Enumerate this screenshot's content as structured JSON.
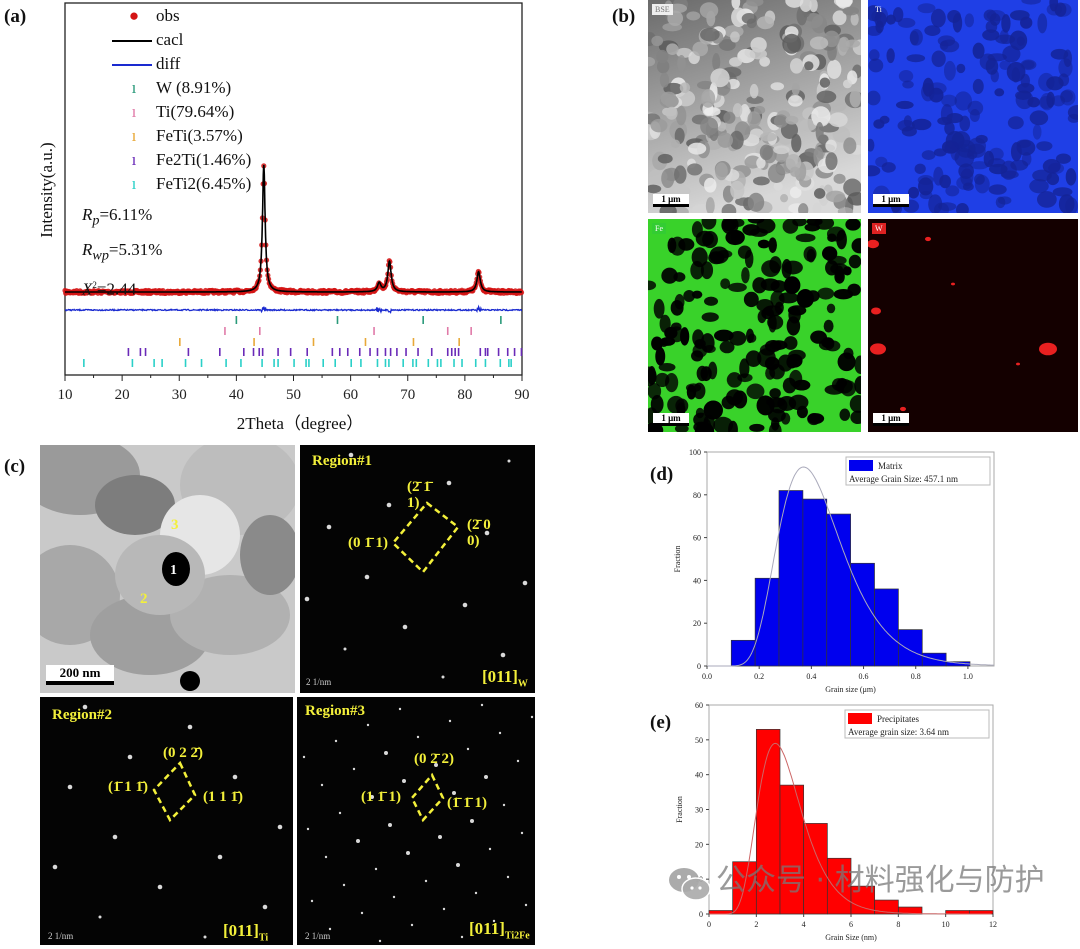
{
  "panels": {
    "a": "(a)",
    "b": "(b)",
    "c": "(c)",
    "d": "(d)",
    "e": "(e)"
  },
  "colors": {
    "obs": "#d41414",
    "calc": "#000000",
    "diff": "#1a2ad0",
    "W": "#2a9a7a",
    "Ti": "#e07aa8",
    "FeTi": "#e8a838",
    "Fe2Ti": "#6a2ab8",
    "FeTi2": "#2ad0c8",
    "matrix": "#0000ee",
    "precip": "#ff0000"
  },
  "chart_data": [
    {
      "type": "line",
      "title": "",
      "xlabel": "2Theta（degree）",
      "ylabel": "Intensity(a.u.)",
      "xlim": [
        10,
        90
      ],
      "xticks": [
        "10",
        "20",
        "30",
        "40",
        "50",
        "60",
        "70",
        "80",
        "90"
      ],
      "legend": {
        "obs": "obs",
        "calc": "cacl",
        "diff": "diff",
        "phases": [
          "W (8.91%)",
          "Ti(79.64%)",
          "FeTi(3.57%)",
          "Fe2Ti(1.46%)",
          "FeTi2(6.45%)"
        ]
      },
      "stats": {
        "rp_sym": "R",
        "rp_sub": "p",
        "rp_val": "=6.11%",
        "rwp_sym": "R",
        "rwp_sub": "wp",
        "rwp_val": "=5.31%",
        "chi_sym": "X",
        "chi_sup": "2",
        "chi_val": "=2.44"
      },
      "peaks": [
        {
          "two_theta": 44.8,
          "intensity": 100
        },
        {
          "two_theta": 65.0,
          "intensity": 7
        },
        {
          "two_theta": 66.8,
          "intensity": 24
        },
        {
          "two_theta": 82.4,
          "intensity": 16
        }
      ],
      "bragg_ticks": {
        "W": [
          40.0,
          57.7,
          72.7,
          86.3
        ],
        "Ti": [
          38.0,
          44.1,
          64.1,
          77.0,
          81.1
        ],
        "FeTi": [
          30.1,
          43.1,
          53.5,
          62.6,
          71.0,
          79.0
        ],
        "Fe2Ti": [
          21.1,
          23.2,
          24.1,
          31.6,
          37.1,
          41.3,
          43.0,
          44.0,
          44.6,
          47.3,
          49.5,
          52.4,
          56.8,
          58.1,
          59.5,
          61.6,
          63.4,
          64.7,
          66.1,
          67.0,
          68.1,
          69.7,
          71.8,
          74.2,
          77.0,
          77.7,
          78.3,
          78.9,
          82.7,
          83.6,
          84.0,
          85.9,
          87.5,
          88.7,
          89.9
        ],
        "FeTi2": [
          13.3,
          21.8,
          25.6,
          27.0,
          31.1,
          33.9,
          38.2,
          40.8,
          44.5,
          46.6,
          47.3,
          50.1,
          52.2,
          52.7,
          55.2,
          57.3,
          60.1,
          61.8,
          64.7,
          66.1,
          66.7,
          69.2,
          70.9,
          71.5,
          73.6,
          75.2,
          75.8,
          78.1,
          79.5,
          81.9,
          83.6,
          86.2,
          87.7,
          88.1
        ]
      }
    },
    {
      "type": "bar",
      "xlabel": "Grain size (μm)",
      "ylabel": "Fraction",
      "xlim": [
        0,
        1.1
      ],
      "ylim": [
        0,
        100
      ],
      "xticks": [
        "0.0",
        "0.2",
        "0.4",
        "0.6",
        "0.8",
        "1.0"
      ],
      "yticks": [
        "0",
        "20",
        "40",
        "60",
        "80",
        "100"
      ],
      "bin_start": 0.093,
      "bin_width": 0.0915,
      "values": [
        12,
        41,
        82,
        78,
        71,
        48,
        36,
        17,
        6,
        2
      ],
      "fit": {
        "peak_x": 0.37,
        "peak_y": 93
      },
      "legend": {
        "series": "Matrix",
        "note": "Average Grain Size: 457.1 nm"
      }
    },
    {
      "type": "bar",
      "xlabel": "Grain Size (nm)",
      "ylabel": "Fraction",
      "xlim": [
        0,
        12
      ],
      "ylim": [
        0,
        60
      ],
      "xticks": [
        "0",
        "2",
        "4",
        "6",
        "8",
        "10",
        "12"
      ],
      "yticks": [
        "0",
        "10",
        "20",
        "30",
        "40",
        "50",
        "60"
      ],
      "bin_start": 0,
      "bin_width": 1,
      "values": [
        1,
        15,
        53,
        37,
        26,
        16,
        8,
        4,
        2,
        0,
        1,
        1
      ],
      "fit": {
        "peak_x": 2.8,
        "peak_y": 49
      },
      "legend": {
        "series": "Precipitates",
        "note": "Average grain size: 3.64 nm"
      }
    }
  ],
  "eds": {
    "bse": "BSE",
    "ti": "Ti",
    "fe": "Fe",
    "w": "W",
    "scale": "1 μm"
  },
  "tem": {
    "n1": "1",
    "n2": "2",
    "n3": "3",
    "scale": "200 nm"
  },
  "saed": {
    "r1": {
      "title": "Region#1",
      "l1a": "(2̄ 1̄",
      "l1b": "1)",
      "l2a": "(2̄ 0",
      "l2b": "0)",
      "l3": "(0 1̄ 1)",
      "zone": "[011]",
      "zone_sub": "W",
      "scale": "2 1/nm"
    },
    "r2": {
      "title": "Region#2",
      "l1": "(0 2 2̄)",
      "l2": "(1̄ 1 1̄)",
      "l3": "(1 1 1̄)",
      "zone": "[011]",
      "zone_sub": "Ti",
      "scale": "2 1/nm"
    },
    "r3": {
      "title": "Region#3",
      "l1": "(0 2̄ 2)",
      "l2": "(1 1̄ 1)",
      "l3": "(1̄ 1̄ 1)",
      "zone": "[011]",
      "zone_sub": "Ti2Fe",
      "scale": "2 1/nm"
    }
  },
  "watermark": "公众号 · 材料强化与防护"
}
